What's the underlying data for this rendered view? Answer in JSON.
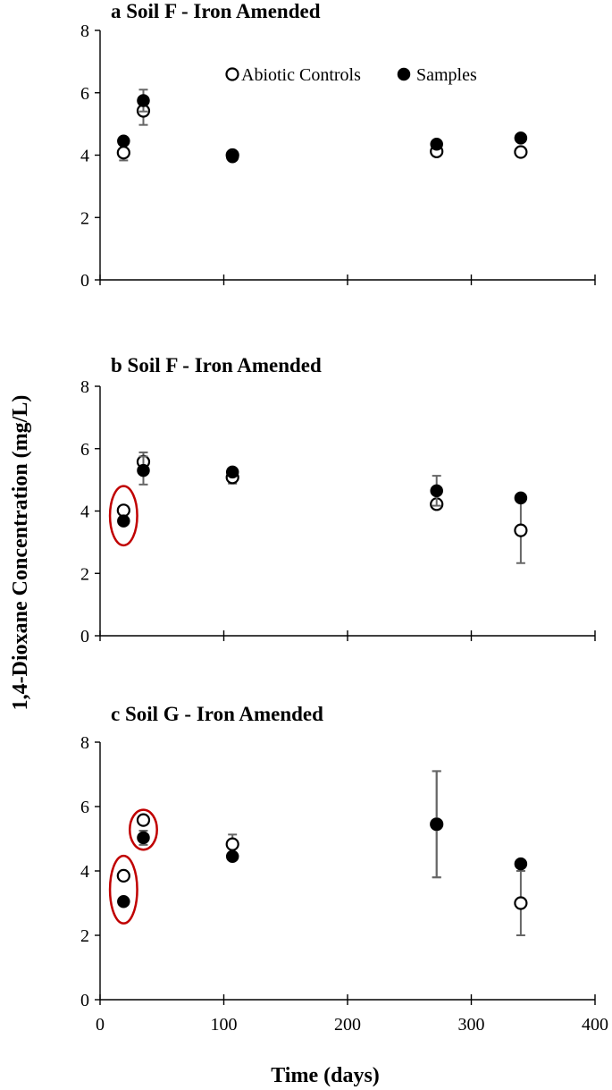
{
  "figure": {
    "ylabel": "1,4-Dioxane Concentration (mg/L)",
    "xlabel": "Time (days)",
    "x_ticks": [
      "0",
      "100",
      "200",
      "300",
      "400"
    ],
    "legend": {
      "open_label": "Abiotic Controls",
      "filled_label": "Samples"
    }
  },
  "chart_data": [
    {
      "type": "scatter",
      "title": "a Soil F - Iron Amended",
      "xlim": [
        0,
        400
      ],
      "ylim": [
        0,
        8
      ],
      "y_ticks": [
        "0",
        "2",
        "4",
        "6",
        "8"
      ],
      "legend_position": "top-center",
      "series": [
        {
          "name": "Abiotic Controls",
          "marker": "open",
          "x": [
            19,
            35,
            107,
            272,
            340
          ],
          "y": [
            4.08,
            5.42,
            4.0,
            4.12,
            4.1
          ],
          "err": [
            0.25,
            0.45,
            0.12,
            0.12,
            0.12
          ]
        },
        {
          "name": "Samples",
          "marker": "filled",
          "x": [
            19,
            35,
            107,
            272,
            340
          ],
          "y": [
            4.45,
            5.75,
            3.95,
            4.35,
            4.55
          ],
          "err": [
            0.1,
            0.35,
            0.1,
            0.1,
            0.1
          ]
        }
      ],
      "highlights": []
    },
    {
      "type": "scatter",
      "title": "b Soil F - Iron Amended",
      "xlim": [
        0,
        400
      ],
      "ylim": [
        0,
        8
      ],
      "y_ticks": [
        "0",
        "2",
        "4",
        "6",
        "8"
      ],
      "series": [
        {
          "name": "Abiotic Controls",
          "marker": "open",
          "x": [
            19,
            35,
            107,
            272,
            340
          ],
          "y": [
            4.02,
            5.58,
            5.08,
            4.22,
            3.38
          ],
          "err": [
            0.1,
            0.3,
            0.2,
            0.1,
            1.05
          ]
        },
        {
          "name": "Samples",
          "marker": "filled",
          "x": [
            19,
            35,
            107,
            272,
            340
          ],
          "y": [
            3.68,
            5.3,
            5.25,
            4.65,
            4.42
          ],
          "err": [
            0.1,
            0.45,
            0.12,
            0.48,
            0.1
          ]
        }
      ],
      "highlights": [
        {
          "x": 19,
          "y": 3.85,
          "rx_days": 11,
          "ry_units": 0.95
        }
      ]
    },
    {
      "type": "scatter",
      "title": "c Soil G - Iron Amended",
      "xlim": [
        0,
        400
      ],
      "ylim": [
        0,
        8
      ],
      "y_ticks": [
        "0",
        "2",
        "4",
        "6",
        "8"
      ],
      "series": [
        {
          "name": "Abiotic Controls",
          "marker": "open",
          "x": [
            19,
            35,
            107,
            272,
            340
          ],
          "y": [
            3.85,
            5.58,
            4.83,
            5.45,
            3.0
          ],
          "err": [
            0.1,
            0.1,
            0.3,
            1.65,
            1.0
          ]
        },
        {
          "name": "Samples",
          "marker": "filled",
          "x": [
            19,
            35,
            107,
            272,
            340
          ],
          "y": [
            3.05,
            5.03,
            4.45,
            5.45,
            4.22
          ],
          "err": [
            0.1,
            0.22,
            0.1,
            1.65,
            0.1
          ]
        }
      ],
      "highlights": [
        {
          "x": 19,
          "y": 3.42,
          "rx_days": 11,
          "ry_units": 1.05
        },
        {
          "x": 35,
          "y": 5.28,
          "rx_days": 11,
          "ry_units": 0.62
        }
      ]
    }
  ]
}
